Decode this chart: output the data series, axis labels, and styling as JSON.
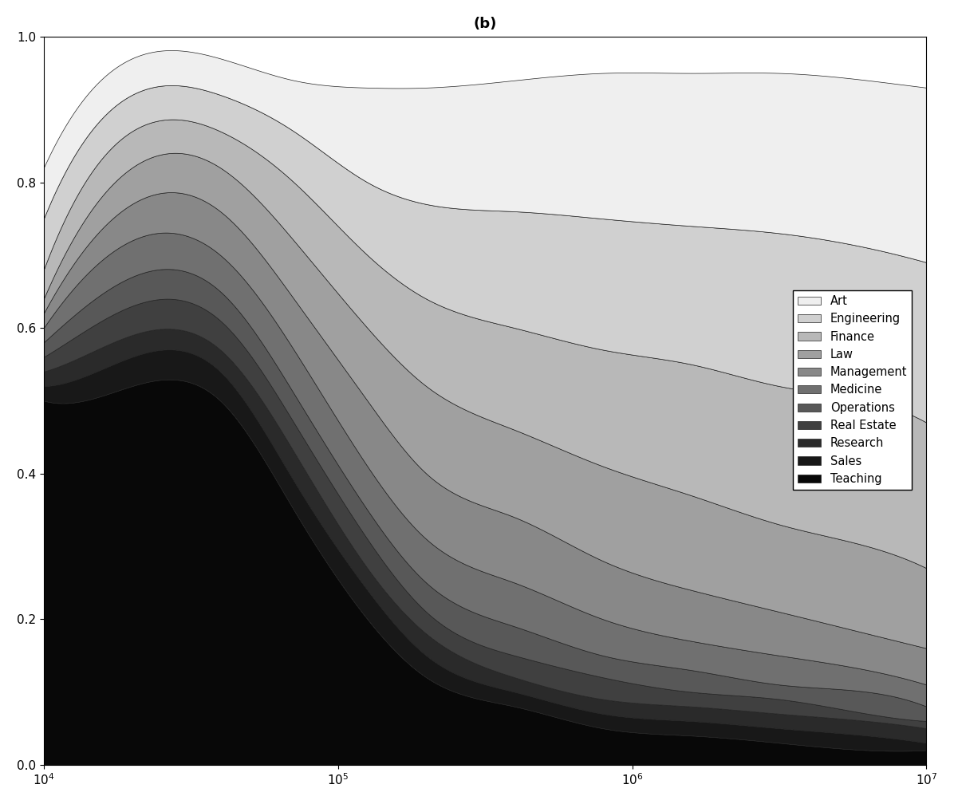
{
  "title": "(b)",
  "categories": [
    "Teaching",
    "Sales",
    "Research",
    "Real Estate",
    "Operations",
    "Medicine",
    "Management",
    "Law",
    "Finance",
    "Engineering",
    "Art"
  ],
  "colors": [
    "#080808",
    "#181818",
    "#2a2a2a",
    "#404040",
    "#585858",
    "#707070",
    "#888888",
    "#a0a0a0",
    "#b8b8b8",
    "#d0d0d0",
    "#efefef"
  ],
  "x_log_knots": [
    4.0,
    4.3,
    4.6,
    4.85,
    5.1,
    5.3,
    5.6,
    5.9,
    6.2,
    6.5,
    6.8,
    7.0
  ],
  "boundaries": {
    "b0": [
      0.0,
      0.0,
      0.0,
      0.0,
      0.0,
      0.0,
      0.0,
      0.0,
      0.0,
      0.0,
      0.0,
      0.0
    ],
    "b1": [
      0.5,
      0.52,
      0.5,
      0.35,
      0.2,
      0.12,
      0.08,
      0.05,
      0.04,
      0.03,
      0.02,
      0.02
    ],
    "b2": [
      0.52,
      0.56,
      0.54,
      0.39,
      0.24,
      0.15,
      0.1,
      0.07,
      0.06,
      0.05,
      0.04,
      0.03
    ],
    "b3": [
      0.54,
      0.59,
      0.57,
      0.43,
      0.27,
      0.18,
      0.12,
      0.09,
      0.08,
      0.07,
      0.06,
      0.05
    ],
    "b4": [
      0.56,
      0.63,
      0.61,
      0.47,
      0.31,
      0.21,
      0.15,
      0.12,
      0.1,
      0.09,
      0.07,
      0.06
    ],
    "b5": [
      0.58,
      0.67,
      0.65,
      0.51,
      0.35,
      0.25,
      0.19,
      0.15,
      0.13,
      0.11,
      0.1,
      0.08
    ],
    "b6": [
      0.6,
      0.72,
      0.7,
      0.57,
      0.41,
      0.31,
      0.25,
      0.2,
      0.17,
      0.15,
      0.13,
      0.11
    ],
    "b7": [
      0.62,
      0.77,
      0.76,
      0.64,
      0.5,
      0.4,
      0.34,
      0.28,
      0.24,
      0.21,
      0.18,
      0.16
    ],
    "b8": [
      0.64,
      0.82,
      0.82,
      0.72,
      0.6,
      0.52,
      0.46,
      0.41,
      0.37,
      0.33,
      0.3,
      0.27
    ],
    "b9": [
      0.68,
      0.87,
      0.87,
      0.8,
      0.7,
      0.64,
      0.6,
      0.57,
      0.55,
      0.52,
      0.5,
      0.47
    ],
    "b10": [
      0.75,
      0.92,
      0.92,
      0.87,
      0.8,
      0.77,
      0.76,
      0.75,
      0.74,
      0.73,
      0.71,
      0.69
    ],
    "b11": [
      0.82,
      0.97,
      0.97,
      0.94,
      0.93,
      0.93,
      0.94,
      0.95,
      0.95,
      0.95,
      0.94,
      0.93
    ]
  }
}
